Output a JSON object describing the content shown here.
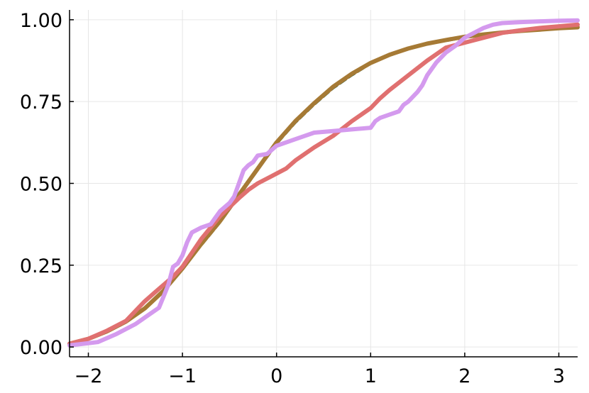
{
  "chart_data": {
    "type": "line",
    "title": "",
    "xlabel": "",
    "ylabel": "",
    "xlim": [
      -2.2,
      3.2
    ],
    "ylim": [
      -0.03,
      1.03
    ],
    "grid": true,
    "legend": "none",
    "x_ticks": [
      -2,
      -1,
      0,
      1,
      2,
      3
    ],
    "x_tick_labels": [
      "−2",
      "−1",
      "0",
      "1",
      "2",
      "3"
    ],
    "y_ticks": [
      0.0,
      0.25,
      0.5,
      0.75,
      1.0
    ],
    "y_tick_labels": [
      "0.00",
      "0.25",
      "0.50",
      "0.75",
      "1.00"
    ],
    "series": [
      {
        "color": "#1b4d2e",
        "dashed": true,
        "width": 3,
        "x": [
          -2.2,
          -2.0,
          -1.8,
          -1.6,
          -1.4,
          -1.2,
          -1.0,
          -0.8,
          -0.6,
          -0.4,
          -0.2,
          0.0,
          0.2,
          0.4,
          0.6,
          0.8,
          1.0,
          1.2,
          1.4,
          1.6,
          1.8,
          2.0,
          2.2,
          2.4,
          2.6,
          2.8,
          3.0,
          3.2
        ],
        "y": [
          0.01,
          0.025,
          0.045,
          0.075,
          0.115,
          0.17,
          0.24,
          0.31,
          0.38,
          0.46,
          0.54,
          0.62,
          0.685,
          0.74,
          0.79,
          0.83,
          0.865,
          0.89,
          0.91,
          0.925,
          0.935,
          0.945,
          0.952,
          0.958,
          0.964,
          0.968,
          0.972,
          0.975
        ]
      },
      {
        "color": "#a67a35",
        "dashed": false,
        "width": 6,
        "x": [
          -2.2,
          -2.0,
          -1.8,
          -1.6,
          -1.4,
          -1.2,
          -1.0,
          -0.8,
          -0.6,
          -0.4,
          -0.2,
          0.0,
          0.2,
          0.4,
          0.6,
          0.8,
          1.0,
          1.2,
          1.4,
          1.6,
          1.8,
          2.0,
          2.2,
          2.4,
          2.6,
          2.8,
          3.0,
          3.2
        ],
        "y": [
          0.01,
          0.025,
          0.048,
          0.078,
          0.118,
          0.172,
          0.24,
          0.315,
          0.385,
          0.465,
          0.545,
          0.625,
          0.69,
          0.745,
          0.795,
          0.835,
          0.868,
          0.893,
          0.912,
          0.927,
          0.938,
          0.948,
          0.955,
          0.961,
          0.966,
          0.97,
          0.974,
          0.977
        ]
      },
      {
        "color": "#e07070",
        "dashed": false,
        "width": 6,
        "x": [
          -2.2,
          -2.0,
          -1.8,
          -1.6,
          -1.5,
          -1.4,
          -1.3,
          -1.2,
          -1.1,
          -1.0,
          -0.8,
          -0.6,
          -0.4,
          -0.3,
          -0.2,
          -0.1,
          0.0,
          0.1,
          0.2,
          0.4,
          0.6,
          0.8,
          1.0,
          1.1,
          1.2,
          1.4,
          1.6,
          1.8,
          2.0,
          2.2,
          2.4,
          2.6,
          2.8,
          3.0,
          3.2
        ],
        "y": [
          0.01,
          0.025,
          0.05,
          0.08,
          0.11,
          0.14,
          0.165,
          0.19,
          0.215,
          0.245,
          0.33,
          0.4,
          0.455,
          0.48,
          0.5,
          0.515,
          0.53,
          0.545,
          0.57,
          0.61,
          0.645,
          0.69,
          0.73,
          0.76,
          0.785,
          0.83,
          0.875,
          0.915,
          0.93,
          0.945,
          0.96,
          0.968,
          0.975,
          0.98,
          0.985
        ]
      },
      {
        "color": "#d49aee",
        "dashed": false,
        "width": 6,
        "x": [
          -2.2,
          -1.9,
          -1.7,
          -1.5,
          -1.35,
          -1.25,
          -1.2,
          -1.15,
          -1.1,
          -1.05,
          -1.0,
          -0.95,
          -0.9,
          -0.8,
          -0.7,
          -0.65,
          -0.6,
          -0.5,
          -0.45,
          -0.4,
          -0.35,
          -0.3,
          -0.25,
          -0.2,
          -0.1,
          0.0,
          0.1,
          0.2,
          0.3,
          0.4,
          0.6,
          0.8,
          1.0,
          1.05,
          1.1,
          1.2,
          1.3,
          1.35,
          1.4,
          1.5,
          1.55,
          1.6,
          1.7,
          1.8,
          1.9,
          2.0,
          2.1,
          2.2,
          2.3,
          2.4,
          2.6,
          2.8,
          3.0,
          3.2
        ],
        "y": [
          0.005,
          0.015,
          0.04,
          0.07,
          0.1,
          0.12,
          0.155,
          0.19,
          0.245,
          0.255,
          0.28,
          0.32,
          0.35,
          0.365,
          0.375,
          0.395,
          0.415,
          0.44,
          0.46,
          0.5,
          0.54,
          0.555,
          0.565,
          0.585,
          0.59,
          0.615,
          0.625,
          0.635,
          0.645,
          0.655,
          0.66,
          0.665,
          0.67,
          0.69,
          0.7,
          0.71,
          0.72,
          0.74,
          0.75,
          0.78,
          0.8,
          0.83,
          0.87,
          0.9,
          0.92,
          0.945,
          0.96,
          0.975,
          0.985,
          0.99,
          0.993,
          0.995,
          0.997,
          0.998
        ]
      }
    ]
  }
}
